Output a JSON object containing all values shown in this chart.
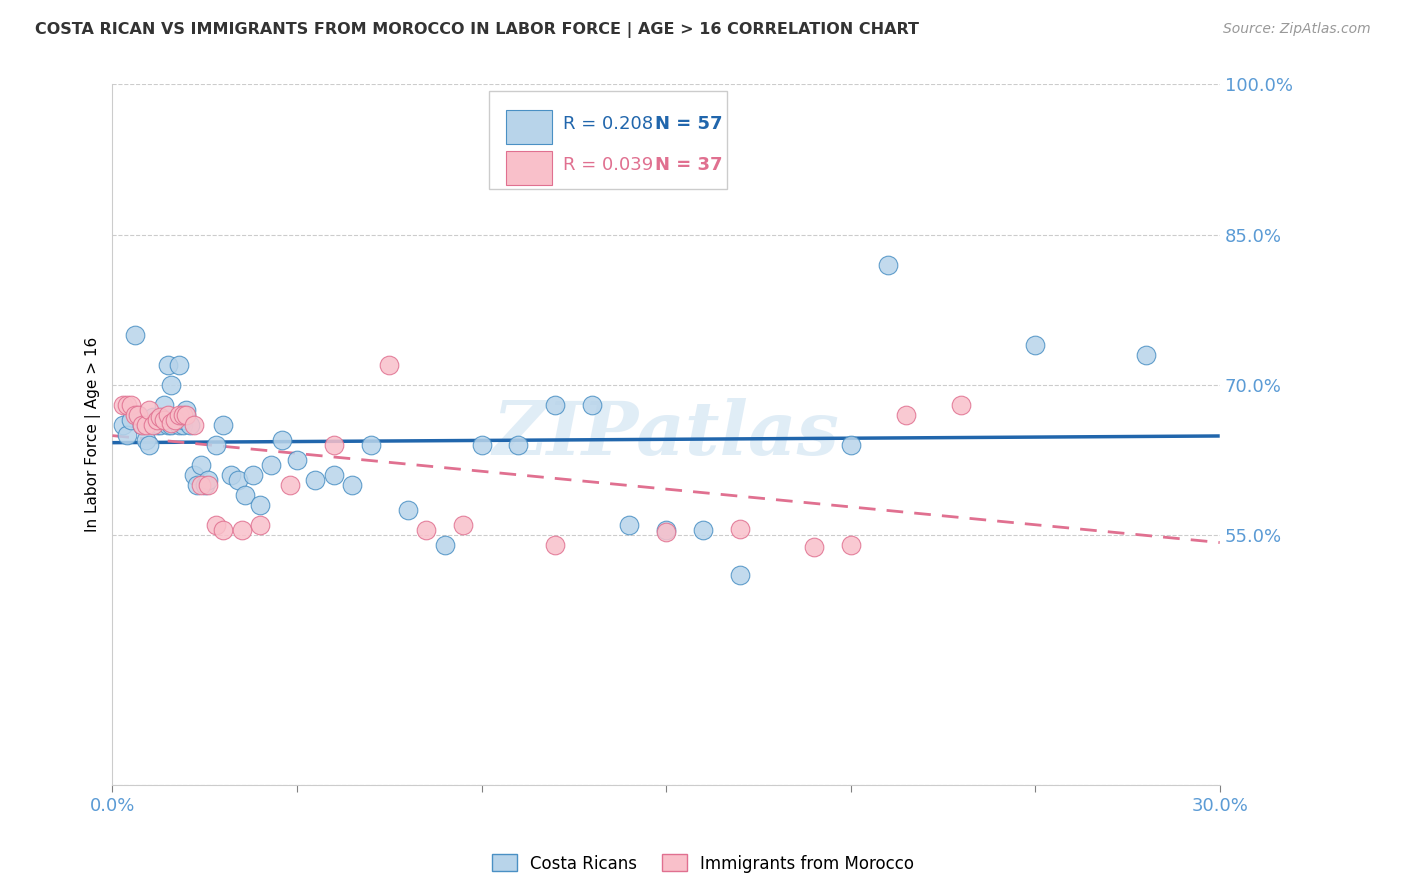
{
  "title": "COSTA RICAN VS IMMIGRANTS FROM MOROCCO IN LABOR FORCE | AGE > 16 CORRELATION CHART",
  "source": "Source: ZipAtlas.com",
  "ylabel": "In Labor Force | Age > 16",
  "xlim": [
    0.0,
    0.3
  ],
  "ylim": [
    0.3,
    1.0
  ],
  "xticks": [
    0.0,
    0.05,
    0.1,
    0.15,
    0.2,
    0.25,
    0.3
  ],
  "xticklabels": [
    "0.0%",
    "",
    "",
    "",
    "",
    "",
    "30.0%"
  ],
  "yticks": [
    0.3,
    0.55,
    0.7,
    0.85,
    1.0
  ],
  "yticklabels": [
    "",
    "55.0%",
    "70.0%",
    "85.0%",
    "100.0%"
  ],
  "costa_rican_R": "0.208",
  "costa_rican_N": "57",
  "morocco_R": "0.039",
  "morocco_N": "37",
  "blue_fill": "#b8d4ea",
  "blue_edge": "#4a90c4",
  "pink_fill": "#f9c0ca",
  "pink_edge": "#e07090",
  "blue_line": "#2166ac",
  "pink_line": "#e07090",
  "legend_text_blue": "#2166ac",
  "legend_text_pink": "#e07090",
  "axis_tick_color": "#5b9bd5",
  "grid_color": "#cccccc",
  "watermark": "ZIPatlas",
  "blue_x": [
    0.003,
    0.004,
    0.005,
    0.006,
    0.007,
    0.008,
    0.009,
    0.01,
    0.011,
    0.012,
    0.013,
    0.014,
    0.015,
    0.015,
    0.016,
    0.016,
    0.017,
    0.018,
    0.018,
    0.019,
    0.019,
    0.02,
    0.02,
    0.021,
    0.022,
    0.023,
    0.024,
    0.025,
    0.026,
    0.028,
    0.03,
    0.032,
    0.034,
    0.036,
    0.038,
    0.04,
    0.043,
    0.046,
    0.05,
    0.055,
    0.06,
    0.065,
    0.07,
    0.08,
    0.09,
    0.1,
    0.11,
    0.12,
    0.13,
    0.14,
    0.15,
    0.16,
    0.17,
    0.2,
    0.21,
    0.25,
    0.28
  ],
  "blue_y": [
    0.66,
    0.65,
    0.665,
    0.75,
    0.67,
    0.66,
    0.645,
    0.64,
    0.668,
    0.66,
    0.66,
    0.68,
    0.66,
    0.72,
    0.7,
    0.66,
    0.665,
    0.66,
    0.72,
    0.66,
    0.665,
    0.67,
    0.675,
    0.66,
    0.61,
    0.6,
    0.62,
    0.6,
    0.605,
    0.64,
    0.66,
    0.61,
    0.605,
    0.59,
    0.61,
    0.58,
    0.62,
    0.645,
    0.625,
    0.605,
    0.61,
    0.6,
    0.64,
    0.575,
    0.54,
    0.64,
    0.64,
    0.68,
    0.68,
    0.56,
    0.555,
    0.555,
    0.51,
    0.64,
    0.82,
    0.74,
    0.73
  ],
  "pink_x": [
    0.003,
    0.004,
    0.005,
    0.006,
    0.007,
    0.008,
    0.009,
    0.01,
    0.011,
    0.012,
    0.013,
    0.014,
    0.015,
    0.016,
    0.017,
    0.018,
    0.019,
    0.02,
    0.022,
    0.024,
    0.026,
    0.028,
    0.03,
    0.035,
    0.04,
    0.048,
    0.06,
    0.075,
    0.085,
    0.095,
    0.12,
    0.15,
    0.17,
    0.19,
    0.2,
    0.215,
    0.23
  ],
  "pink_y": [
    0.68,
    0.68,
    0.68,
    0.67,
    0.67,
    0.66,
    0.66,
    0.675,
    0.66,
    0.665,
    0.668,
    0.665,
    0.67,
    0.662,
    0.665,
    0.67,
    0.67,
    0.67,
    0.66,
    0.6,
    0.6,
    0.56,
    0.555,
    0.555,
    0.56,
    0.6,
    0.64,
    0.72,
    0.555,
    0.56,
    0.54,
    0.553,
    0.556,
    0.538,
    0.54,
    0.67,
    0.68
  ]
}
